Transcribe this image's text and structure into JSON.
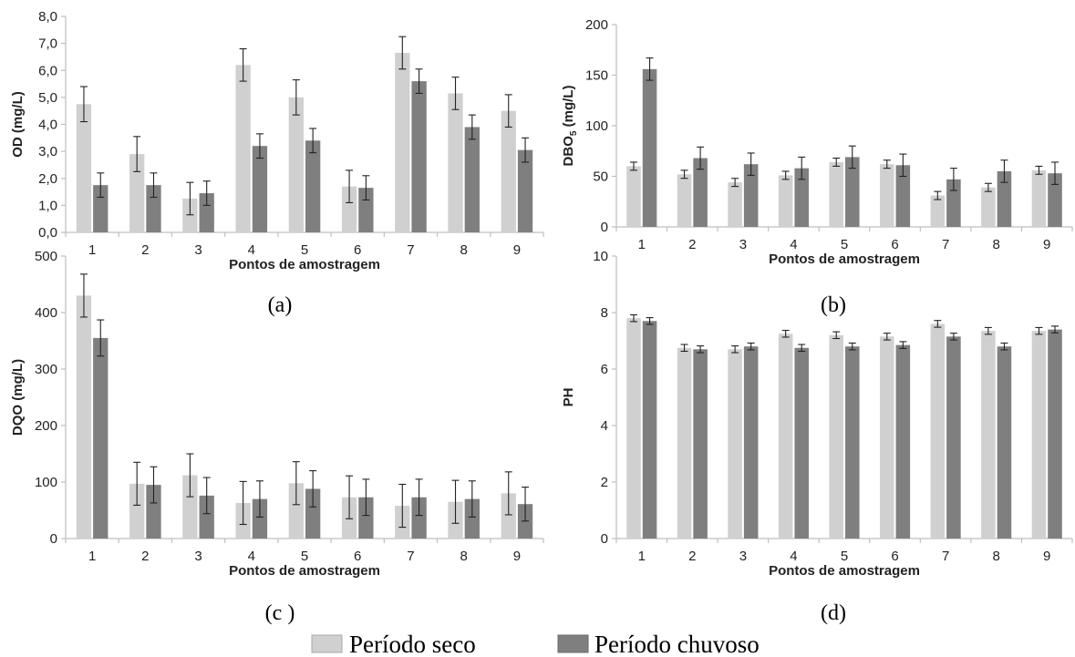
{
  "colors": {
    "seco": "#d0d0d0",
    "chuvoso": "#7f7f7f",
    "axis": "#bfbfbf",
    "error": "#222222"
  },
  "legend": [
    {
      "label": "Período seco",
      "color": "#d0d0d0"
    },
    {
      "label": "Período chuvoso",
      "color": "#7f7f7f"
    }
  ],
  "chart_data": [
    {
      "type": "bar",
      "caption": "(a)",
      "categories": [
        "1",
        "2",
        "3",
        "4",
        "5",
        "6",
        "7",
        "8",
        "9"
      ],
      "xlabel": "Pontos de amostragem",
      "ylabel": "OD (mg/L)",
      "ylim": [
        0,
        8
      ],
      "yticks": [
        "0,0",
        "1,0",
        "2,0",
        "3,0",
        "4,0",
        "5,0",
        "6,0",
        "7,0",
        "8,0"
      ],
      "series": [
        {
          "name": "Período seco",
          "values": [
            4.75,
            2.9,
            1.25,
            6.2,
            5.0,
            1.7,
            6.65,
            5.15,
            4.5
          ],
          "errors": [
            0.65,
            0.65,
            0.6,
            0.6,
            0.65,
            0.6,
            0.6,
            0.6,
            0.6
          ]
        },
        {
          "name": "Período chuvoso",
          "values": [
            1.75,
            1.75,
            1.45,
            3.2,
            3.4,
            1.65,
            5.6,
            3.9,
            3.05
          ],
          "errors": [
            0.45,
            0.45,
            0.45,
            0.45,
            0.45,
            0.45,
            0.45,
            0.45,
            0.45
          ]
        }
      ]
    },
    {
      "type": "bar",
      "caption": "(b)",
      "categories": [
        "1",
        "2",
        "3",
        "4",
        "5",
        "6",
        "7",
        "8",
        "9"
      ],
      "xlabel": "Pontos de amostragem",
      "ylabel": "DBO",
      "ylabel_subscript": "5",
      "ylabel_suffix": " (mg/L)",
      "ylim": [
        0,
        200
      ],
      "yticks": [
        "0",
        "50",
        "100",
        "150",
        "200"
      ],
      "series": [
        {
          "name": "Período seco",
          "values": [
            60,
            52,
            44,
            51,
            64,
            62,
            31,
            39,
            56
          ],
          "errors": [
            4,
            4,
            4,
            4,
            4,
            4,
            4,
            4,
            4
          ]
        },
        {
          "name": "Período chuvoso",
          "values": [
            156,
            68,
            62,
            58,
            69,
            61,
            47,
            55,
            53
          ],
          "errors": [
            11,
            11,
            11,
            11,
            11,
            11,
            11,
            11,
            11
          ]
        }
      ]
    },
    {
      "type": "bar",
      "caption": "(c )",
      "categories": [
        "1",
        "2",
        "3",
        "4",
        "5",
        "6",
        "7",
        "8",
        "9"
      ],
      "xlabel": "Pontos de amostragem",
      "ylabel": "DQO (mg/L)",
      "ylim": [
        0,
        500
      ],
      "yticks": [
        "0",
        "100",
        "200",
        "300",
        "400",
        "500"
      ],
      "series": [
        {
          "name": "Período seco",
          "values": [
            430,
            97,
            112,
            63,
            98,
            73,
            58,
            65,
            80
          ],
          "errors": [
            38,
            38,
            38,
            38,
            38,
            38,
            38,
            38,
            38
          ]
        },
        {
          "name": "Período chuvoso",
          "values": [
            355,
            95,
            76,
            70,
            88,
            73,
            73,
            70,
            61
          ],
          "errors": [
            32,
            32,
            32,
            32,
            32,
            32,
            32,
            32,
            30
          ]
        }
      ]
    },
    {
      "type": "bar",
      "caption": "(d)",
      "categories": [
        "1",
        "2",
        "3",
        "4",
        "5",
        "6",
        "7",
        "8",
        "9"
      ],
      "xlabel": "Pontos de amostragem",
      "ylabel": "PH",
      "ylim": [
        0,
        10
      ],
      "yticks": [
        "0",
        "2",
        "4",
        "6",
        "8",
        "10"
      ],
      "series": [
        {
          "name": "Período seco",
          "values": [
            7.8,
            6.75,
            6.7,
            7.25,
            7.2,
            7.15,
            7.6,
            7.35,
            7.35
          ],
          "errors": [
            0.12,
            0.12,
            0.12,
            0.12,
            0.12,
            0.12,
            0.12,
            0.12,
            0.12
          ]
        },
        {
          "name": "Período chuvoso",
          "values": [
            7.7,
            6.7,
            6.8,
            6.75,
            6.8,
            6.85,
            7.15,
            6.8,
            7.4
          ],
          "errors": [
            0.12,
            0.12,
            0.12,
            0.12,
            0.12,
            0.12,
            0.12,
            0.12,
            0.12
          ]
        }
      ]
    }
  ]
}
